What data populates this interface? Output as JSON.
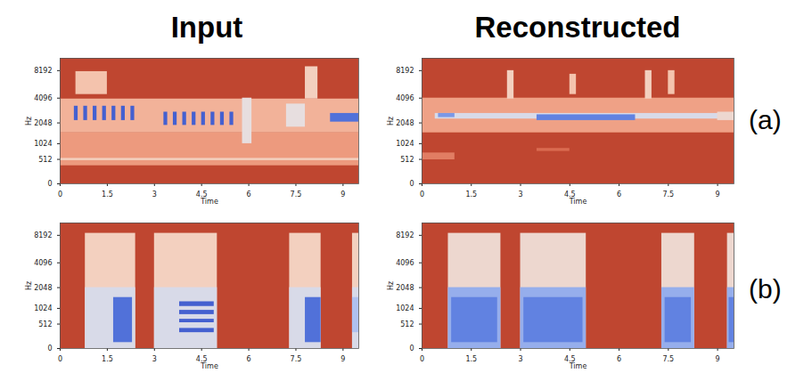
{
  "column_titles": [
    "Input",
    "Reconstructed"
  ],
  "row_labels": [
    "(a)",
    "(b)"
  ],
  "chart_data": [
    {
      "type": "heatmap",
      "xlabel": "Time",
      "ylabel": "Hz",
      "xlim": [
        0,
        9.5
      ],
      "ylim": [
        0,
        11025
      ],
      "xticks": [
        0,
        1.5,
        3,
        4.5,
        6,
        7.5,
        9
      ],
      "yticks": [
        0,
        512,
        1024,
        2048,
        4096,
        8192
      ],
      "zlim": [
        0,
        1
      ],
      "cells": [
        {
          "t0": 0,
          "t1": 9.5,
          "f0": 0,
          "f1": 11025,
          "z": 0
        },
        {
          "t0": 0,
          "t1": 9.5,
          "f0": 350,
          "f1": 1500,
          "z": 0.28
        },
        {
          "t0": 0,
          "t1": 9.5,
          "f0": 480,
          "f1": 540,
          "z": 0.45
        },
        {
          "t0": 0,
          "t1": 9.5,
          "f0": 1500,
          "f1": 4000,
          "z": 0.35
        },
        {
          "t0": 0.5,
          "t1": 1.5,
          "f0": 4500,
          "f1": 8000,
          "z": 0.4
        },
        {
          "t0": 5.8,
          "t1": 6.1,
          "f0": 1024,
          "f1": 4096,
          "z": 0.55
        },
        {
          "t0": 7.2,
          "t1": 7.8,
          "f0": 1800,
          "f1": 3500,
          "z": 0.55
        },
        {
          "t0": 7.8,
          "t1": 8.2,
          "f0": 4000,
          "f1": 9000,
          "z": 0.45
        },
        {
          "t0": 0.45,
          "t1": 0.57,
          "f0": 2200,
          "f1": 3300,
          "z": 0.95
        },
        {
          "t0": 0.75,
          "t1": 0.87,
          "f0": 2200,
          "f1": 3300,
          "z": 0.95
        },
        {
          "t0": 1.05,
          "t1": 1.17,
          "f0": 2200,
          "f1": 3300,
          "z": 0.95
        },
        {
          "t0": 1.35,
          "t1": 1.47,
          "f0": 2200,
          "f1": 3300,
          "z": 0.95
        },
        {
          "t0": 1.65,
          "t1": 1.77,
          "f0": 2200,
          "f1": 3300,
          "z": 0.95
        },
        {
          "t0": 1.95,
          "t1": 2.07,
          "f0": 2200,
          "f1": 3300,
          "z": 0.95
        },
        {
          "t0": 2.25,
          "t1": 2.37,
          "f0": 2200,
          "f1": 3300,
          "z": 0.95
        },
        {
          "t0": 3.3,
          "t1": 3.42,
          "f0": 1900,
          "f1": 2800,
          "z": 0.95
        },
        {
          "t0": 3.6,
          "t1": 3.72,
          "f0": 1900,
          "f1": 2800,
          "z": 0.95
        },
        {
          "t0": 3.9,
          "t1": 4.02,
          "f0": 1900,
          "f1": 2800,
          "z": 0.95
        },
        {
          "t0": 4.2,
          "t1": 4.32,
          "f0": 1900,
          "f1": 2800,
          "z": 0.95
        },
        {
          "t0": 4.5,
          "t1": 4.62,
          "f0": 1900,
          "f1": 2800,
          "z": 0.95
        },
        {
          "t0": 4.8,
          "t1": 4.92,
          "f0": 1900,
          "f1": 2800,
          "z": 0.95
        },
        {
          "t0": 5.1,
          "t1": 5.22,
          "f0": 1900,
          "f1": 2800,
          "z": 0.95
        },
        {
          "t0": 5.4,
          "t1": 5.52,
          "f0": 1900,
          "f1": 2800,
          "z": 0.95
        },
        {
          "t0": 8.6,
          "t1": 9.5,
          "f0": 2100,
          "f1": 2700,
          "z": 0.9
        }
      ]
    },
    {
      "type": "heatmap",
      "xlabel": "Time",
      "ylabel": "Hz",
      "xlim": [
        0,
        9.5
      ],
      "ylim": [
        0,
        11025
      ],
      "xticks": [
        0,
        1.5,
        3,
        4.5,
        6,
        7.5,
        9
      ],
      "yticks": [
        0,
        512,
        1024,
        2048,
        4096,
        8192
      ],
      "zlim": [
        0,
        1
      ],
      "cells": [
        {
          "t0": 0,
          "t1": 9.5,
          "f0": 0,
          "f1": 11025,
          "z": 0
        },
        {
          "t0": 0,
          "t1": 9.5,
          "f0": 1500,
          "f1": 4096,
          "z": 0.3
        },
        {
          "t0": 0,
          "t1": 1.0,
          "f0": 500,
          "f1": 700,
          "z": 0.2
        },
        {
          "t0": 3.5,
          "t1": 4.5,
          "f0": 750,
          "f1": 850,
          "z": 0.15
        },
        {
          "t0": 0.4,
          "t1": 9.5,
          "f0": 2300,
          "f1": 2700,
          "z": 0.6
        },
        {
          "t0": 0.5,
          "t1": 1.0,
          "f0": 2400,
          "f1": 2700,
          "z": 0.8
        },
        {
          "t0": 3.5,
          "t1": 6.5,
          "f0": 2200,
          "f1": 2600,
          "z": 0.85
        },
        {
          "t0": 9.0,
          "t1": 9.5,
          "f0": 2200,
          "f1": 2800,
          "z": 0.5
        },
        {
          "t0": 2.6,
          "t1": 2.8,
          "f0": 4000,
          "f1": 8192,
          "z": 0.45
        },
        {
          "t0": 4.5,
          "t1": 4.7,
          "f0": 4500,
          "f1": 7500,
          "z": 0.4
        },
        {
          "t0": 6.8,
          "t1": 7.0,
          "f0": 4000,
          "f1": 8192,
          "z": 0.45
        },
        {
          "t0": 7.5,
          "t1": 7.7,
          "f0": 4500,
          "f1": 8192,
          "z": 0.4
        }
      ]
    },
    {
      "type": "heatmap",
      "xlabel": "Time",
      "ylabel": "Hz",
      "xlim": [
        0,
        9.5
      ],
      "ylim": [
        0,
        11025
      ],
      "xticks": [
        0,
        1.5,
        3,
        4.5,
        6,
        7.5,
        9
      ],
      "yticks": [
        0,
        512,
        1024,
        2048,
        4096,
        8192
      ],
      "zlim": [
        0,
        1
      ],
      "cells": [
        {
          "t0": 0,
          "t1": 9.5,
          "f0": 0,
          "f1": 11025,
          "z": 0
        },
        {
          "t0": 0.8,
          "t1": 2.4,
          "f0": 0,
          "f1": 8600,
          "z": 0.45
        },
        {
          "t0": 3.0,
          "t1": 5.0,
          "f0": 0,
          "f1": 8600,
          "z": 0.45
        },
        {
          "t0": 7.3,
          "t1": 8.3,
          "f0": 0,
          "f1": 8600,
          "z": 0.45
        },
        {
          "t0": 9.3,
          "t1": 9.5,
          "f0": 0,
          "f1": 8600,
          "z": 0.45
        },
        {
          "t0": 0.8,
          "t1": 2.4,
          "f0": 0,
          "f1": 2048,
          "z": 0.6
        },
        {
          "t0": 3.0,
          "t1": 5.0,
          "f0": 0,
          "f1": 2048,
          "z": 0.6
        },
        {
          "t0": 7.3,
          "t1": 8.3,
          "f0": 0,
          "f1": 2048,
          "z": 0.6
        },
        {
          "t0": 9.3,
          "t1": 9.5,
          "f0": 0,
          "f1": 2048,
          "z": 0.6
        },
        {
          "t0": 1.7,
          "t1": 2.3,
          "f0": 100,
          "f1": 1500,
          "z": 0.9
        },
        {
          "t0": 3.8,
          "t1": 4.9,
          "f0": 300,
          "f1": 400,
          "z": 0.95
        },
        {
          "t0": 3.8,
          "t1": 4.9,
          "f0": 550,
          "f1": 650,
          "z": 0.95
        },
        {
          "t0": 3.8,
          "t1": 4.9,
          "f0": 800,
          "f1": 950,
          "z": 0.95
        },
        {
          "t0": 3.8,
          "t1": 4.9,
          "f0": 1100,
          "f1": 1300,
          "z": 0.95
        },
        {
          "t0": 7.8,
          "t1": 8.3,
          "f0": 100,
          "f1": 1500,
          "z": 0.9
        },
        {
          "t0": 9.3,
          "t1": 9.5,
          "f0": 300,
          "f1": 1500,
          "z": 0.7
        }
      ]
    },
    {
      "type": "heatmap",
      "xlabel": "Time",
      "ylabel": "Hz",
      "xlim": [
        0,
        9.5
      ],
      "ylim": [
        0,
        11025
      ],
      "xticks": [
        0,
        1.5,
        3,
        4.5,
        6,
        7.5,
        9
      ],
      "yticks": [
        0,
        512,
        1024,
        2048,
        4096,
        8192
      ],
      "zlim": [
        0,
        1
      ],
      "cells": [
        {
          "t0": 0,
          "t1": 9.5,
          "f0": 0,
          "f1": 11025,
          "z": 0
        },
        {
          "t0": 0.8,
          "t1": 2.4,
          "f0": 0,
          "f1": 8600,
          "z": 0.5
        },
        {
          "t0": 3.0,
          "t1": 5.0,
          "f0": 0,
          "f1": 8600,
          "z": 0.5
        },
        {
          "t0": 7.3,
          "t1": 8.3,
          "f0": 0,
          "f1": 8600,
          "z": 0.5
        },
        {
          "t0": 9.3,
          "t1": 9.5,
          "f0": 0,
          "f1": 8600,
          "z": 0.5
        },
        {
          "t0": 0.8,
          "t1": 2.4,
          "f0": 0,
          "f1": 2048,
          "z": 0.75
        },
        {
          "t0": 3.0,
          "t1": 5.0,
          "f0": 0,
          "f1": 2048,
          "z": 0.75
        },
        {
          "t0": 7.3,
          "t1": 8.3,
          "f0": 0,
          "f1": 2048,
          "z": 0.75
        },
        {
          "t0": 9.3,
          "t1": 9.5,
          "f0": 0,
          "f1": 2048,
          "z": 0.75
        },
        {
          "t0": 0.9,
          "t1": 2.3,
          "f0": 100,
          "f1": 1500,
          "z": 0.85
        },
        {
          "t0": 3.1,
          "t1": 4.9,
          "f0": 100,
          "f1": 1500,
          "z": 0.85
        },
        {
          "t0": 7.4,
          "t1": 8.2,
          "f0": 100,
          "f1": 1500,
          "z": 0.85
        },
        {
          "t0": 9.35,
          "t1": 9.5,
          "f0": 100,
          "f1": 1500,
          "z": 0.85
        }
      ]
    }
  ]
}
